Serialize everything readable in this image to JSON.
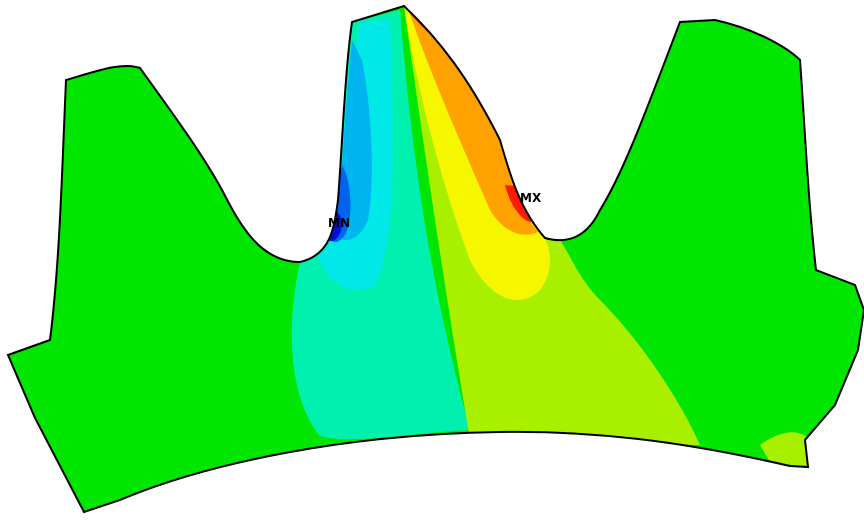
{
  "diagram": {
    "colors": {
      "background": "#ffffff",
      "outline": "#000000",
      "base_green": "#00e600",
      "yellow_green": "#a8f000",
      "yellow": "#f6f600",
      "orange": "#ffa200",
      "red": "#ff1a00",
      "teal": "#00f0b0",
      "cyan": "#00e8e8",
      "light_blue": "#00b4f0",
      "blue": "#0064f0",
      "dark_blue": "#0010d8"
    },
    "markers": {
      "min_label": "MN",
      "max_label": "MX"
    }
  }
}
